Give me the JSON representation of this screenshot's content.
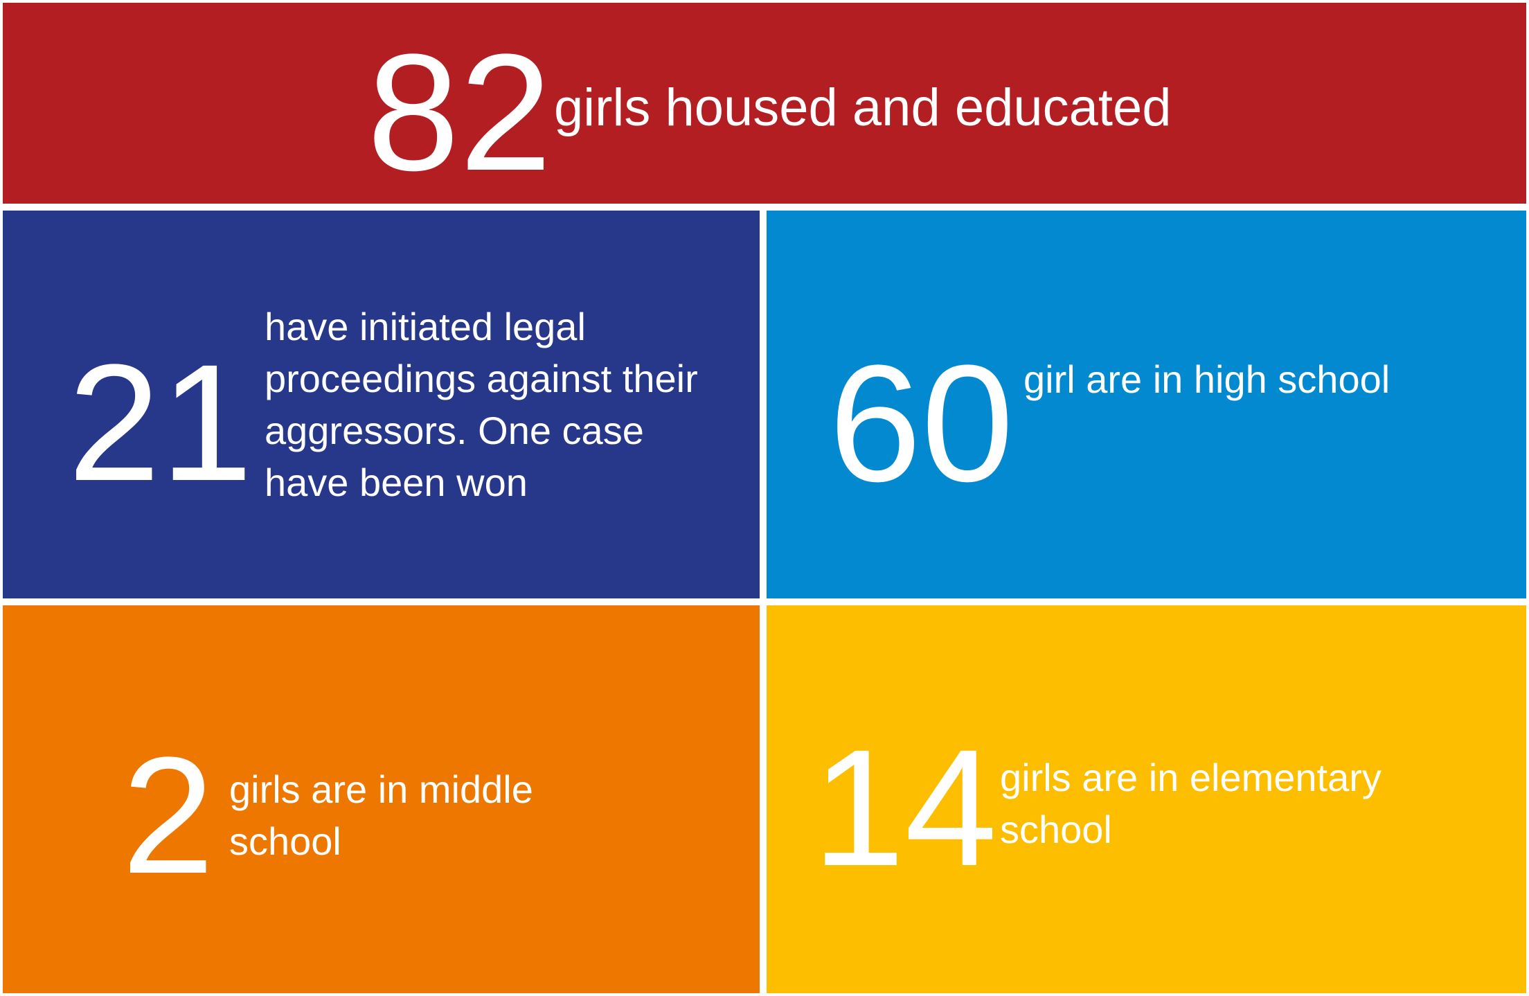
{
  "stats": {
    "top": {
      "number": "82",
      "text": "girls housed and educated",
      "color": "#b31e22"
    },
    "legal": {
      "number": "21",
      "text": "have initiated legal proceedings against their aggressors. One case have been won",
      "color": "#27378a"
    },
    "high": {
      "number": "60",
      "text": "girl are in high school",
      "color": "#0389cf"
    },
    "middle": {
      "number": "2",
      "text": "girls are in middle school",
      "color": "#ee7700"
    },
    "elem": {
      "number": "14",
      "text": "girls are in elementary school",
      "color": "#fdbe00"
    }
  }
}
